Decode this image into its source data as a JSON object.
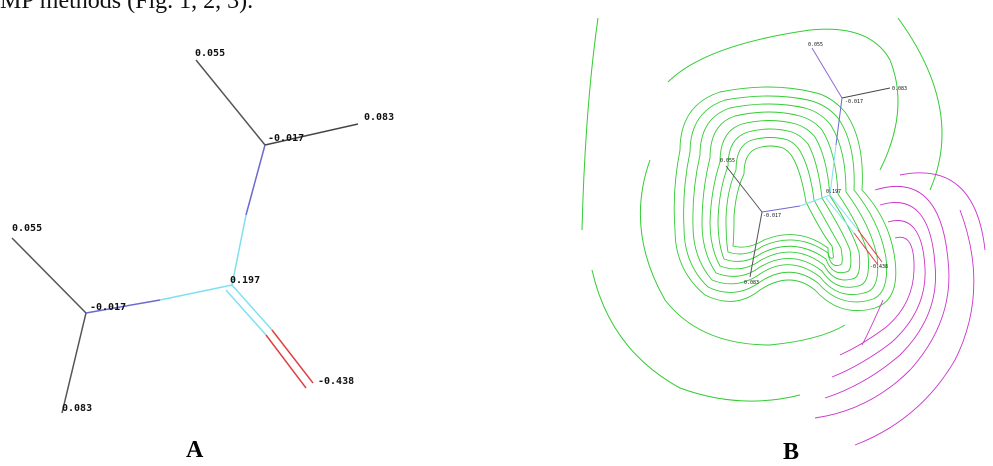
{
  "header_text": "MP methods (Fig. 1, 2, 3).",
  "panels": {
    "a": {
      "caption": "A",
      "labels": {
        "h1": "0.055",
        "h2": "0.083",
        "c1": "-0.017",
        "h3": "0.055",
        "c2": "-0.017",
        "c3": "0.197",
        "h4": "0.083",
        "o1": "-0.438"
      }
    },
    "b": {
      "caption": "B",
      "labels": {
        "h1": "0.055",
        "h2": "0.083",
        "c1": "-0.017",
        "h3": "0.055",
        "c2": "-0.017",
        "c3": "0.197",
        "h4": "0.083",
        "o1": "-0.438"
      }
    }
  },
  "colors": {
    "carbon_bond": "#6a6ad0",
    "hydrogen_bond": "#444444",
    "cyan_bond": "#7fe0f0",
    "oxygen_bond": "#e04040",
    "positive_contour": "#33cc33",
    "negative_contour": "#cc33cc"
  }
}
